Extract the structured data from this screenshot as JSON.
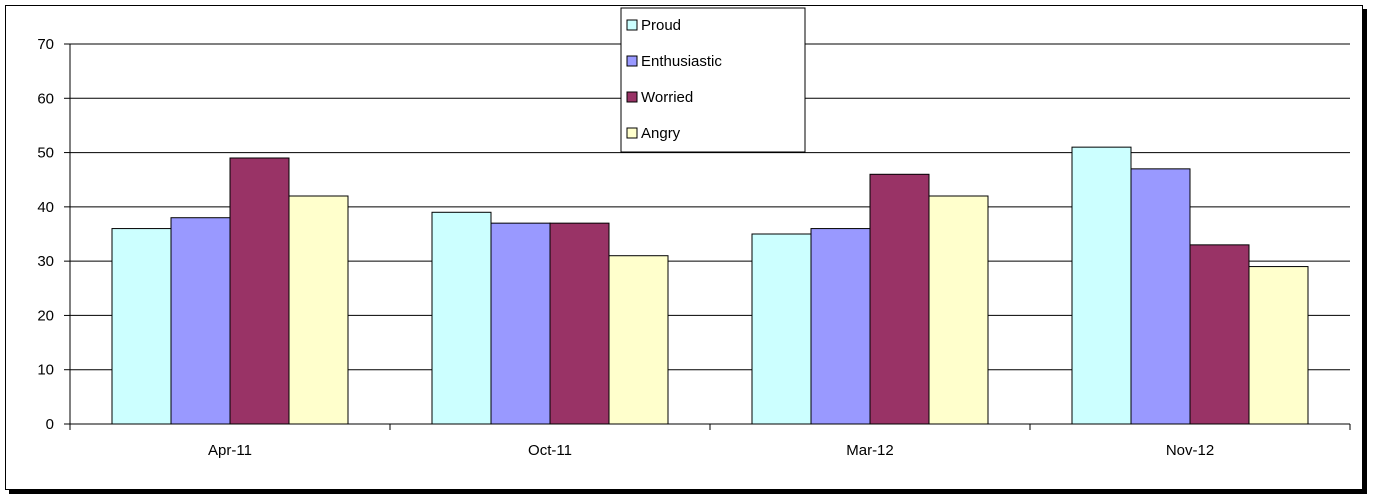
{
  "chart_data": {
    "type": "bar",
    "categories": [
      "Apr-11",
      "Oct-11",
      "Mar-12",
      "Nov-12"
    ],
    "series": [
      {
        "name": "Proud",
        "values": [
          36,
          39,
          35,
          51
        ],
        "color": "#ccffff"
      },
      {
        "name": "Enthusiastic",
        "values": [
          38,
          37,
          36,
          47
        ],
        "color": "#9999ff"
      },
      {
        "name": "Worried",
        "values": [
          49,
          37,
          46,
          33
        ],
        "color": "#993366"
      },
      {
        "name": "Angry",
        "values": [
          42,
          31,
          42,
          29
        ],
        "color": "#ffffcc"
      }
    ],
    "yticks": [
      0,
      10,
      20,
      30,
      40,
      50,
      60,
      70
    ],
    "ylim": [
      0,
      70
    ],
    "grid": true,
    "legend_position": "top-center"
  }
}
